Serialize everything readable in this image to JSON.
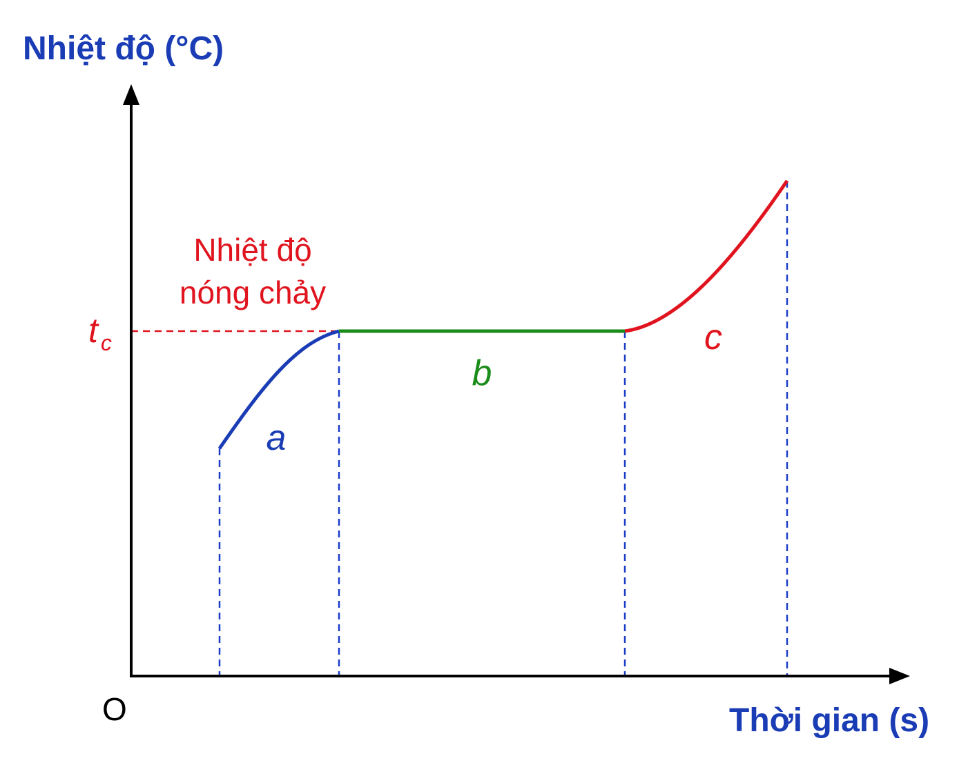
{
  "y_axis": {
    "label": "Nhiệt độ (°C)"
  },
  "x_axis": {
    "label": "Thời gian (s)"
  },
  "origin": "O",
  "melting_temperature": {
    "symbol": "t",
    "subscript": "c",
    "lines": [
      "Nhiệt độ",
      "nóng chảy"
    ]
  },
  "segments": [
    "a",
    "b",
    "c"
  ]
}
